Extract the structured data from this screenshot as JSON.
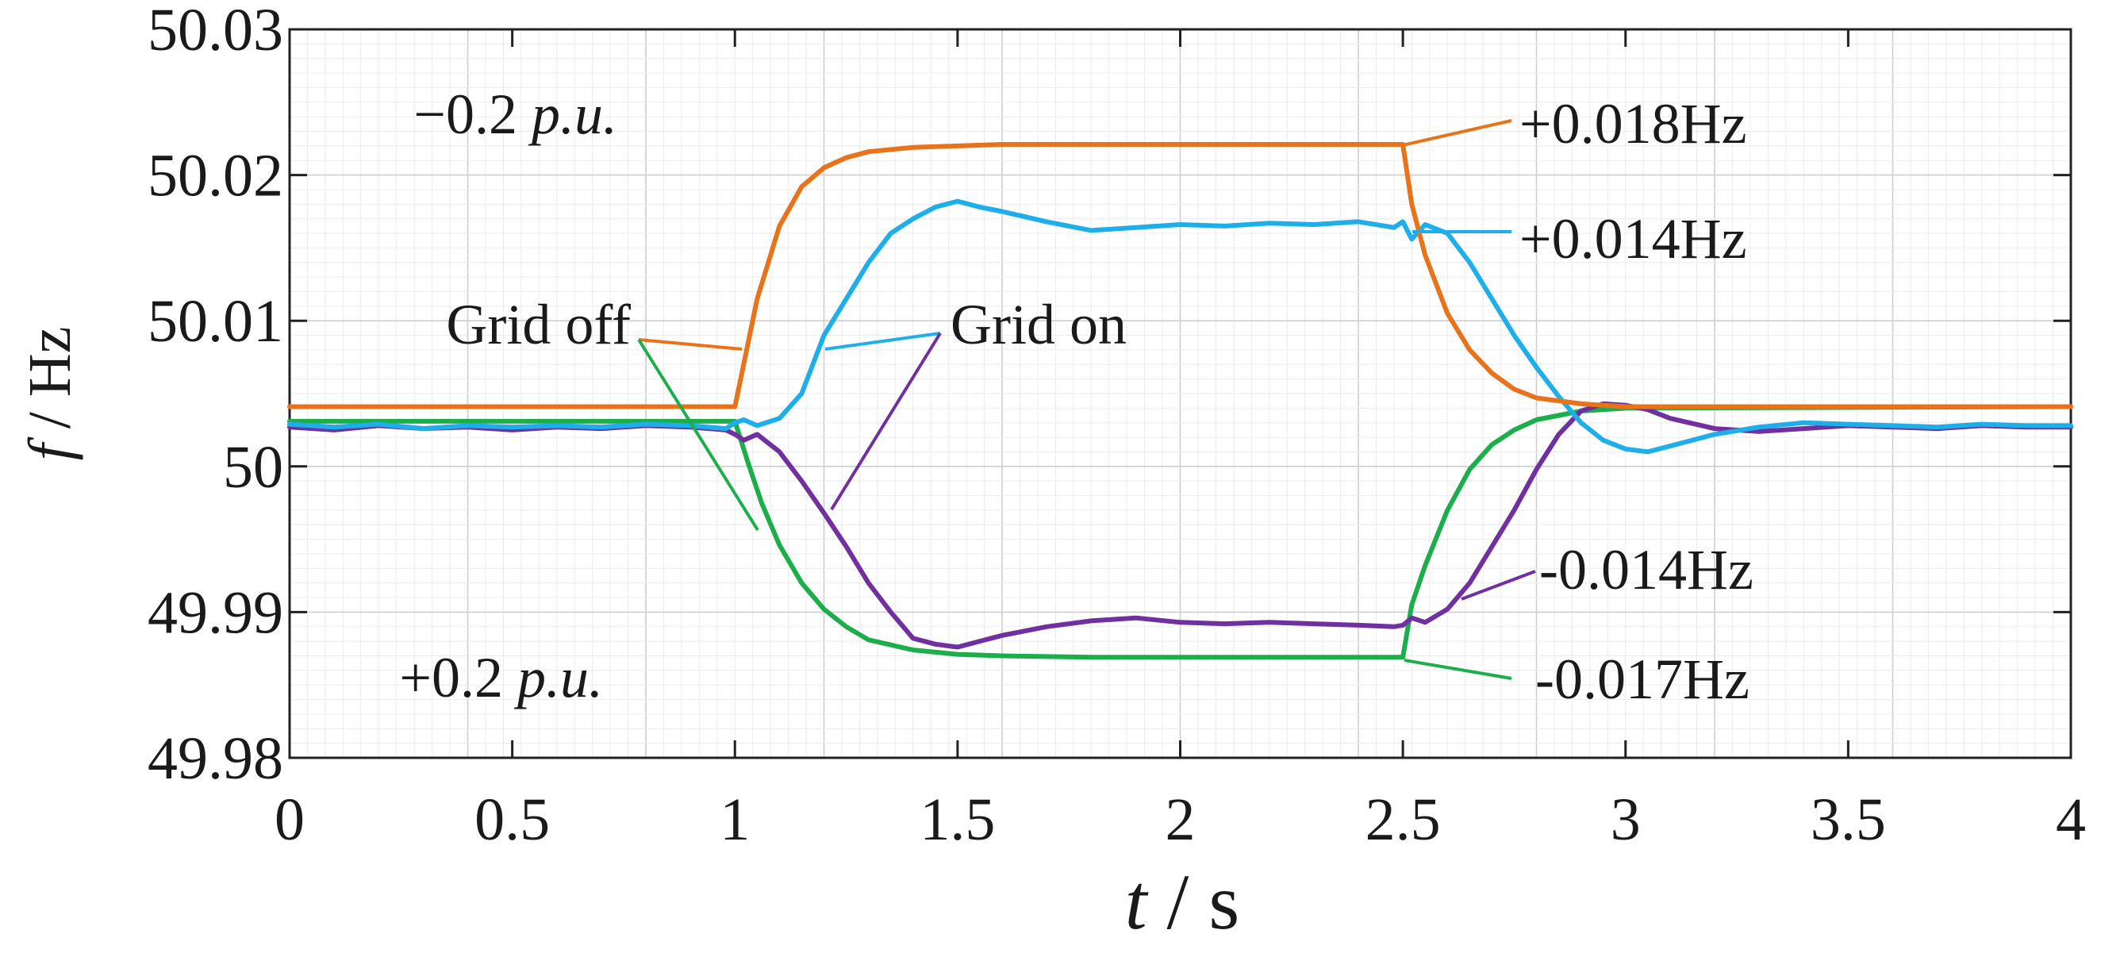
{
  "chart_data": {
    "type": "line",
    "title": "",
    "xlabel": {
      "symbol": "t",
      "unit": " / s"
    },
    "ylabel": {
      "symbol": "f",
      "unit": " / Hz"
    },
    "xlim": [
      0,
      4
    ],
    "ylim": [
      49.98,
      50.03
    ],
    "x_ticks": [
      0,
      0.5,
      1,
      1.5,
      2,
      2.5,
      3,
      3.5,
      4
    ],
    "x_tick_labels": [
      "0",
      "0.5",
      "1",
      "1.5",
      "2",
      "2.5",
      "3",
      "3.5",
      "4"
    ],
    "y_ticks": [
      49.98,
      49.99,
      50,
      50.01,
      50.02,
      50.03
    ],
    "y_tick_labels": [
      "49.98",
      "49.99",
      "50",
      "50.01",
      "50.02",
      "50.03"
    ],
    "grid": true,
    "series": [
      {
        "name": "Grid off (-0.2 p.u.)",
        "color": "#E8731A",
        "x": [
          0,
          1.0,
          1.05,
          1.1,
          1.15,
          1.2,
          1.25,
          1.3,
          1.4,
          1.5,
          1.6,
          1.8,
          2.0,
          2.5,
          2.52,
          2.55,
          2.6,
          2.65,
          2.7,
          2.75,
          2.8,
          2.9,
          3.0,
          4.0
        ],
        "y": [
          50.0041,
          50.0041,
          50.0115,
          50.0165,
          50.0192,
          50.0205,
          50.0212,
          50.0216,
          50.0219,
          50.022,
          50.0221,
          50.0221,
          50.0221,
          50.0221,
          50.018,
          50.0145,
          50.0105,
          50.008,
          50.0064,
          50.0053,
          50.0047,
          50.0043,
          50.0041,
          50.0041
        ]
      },
      {
        "name": "Grid on (+)",
        "color": "#1EAEEA",
        "x": [
          0,
          0.1,
          0.2,
          0.3,
          0.4,
          0.5,
          0.6,
          0.7,
          0.8,
          0.9,
          0.98,
          1.0,
          1.02,
          1.05,
          1.1,
          1.15,
          1.2,
          1.25,
          1.3,
          1.35,
          1.4,
          1.45,
          1.5,
          1.55,
          1.6,
          1.7,
          1.8,
          1.9,
          2.0,
          2.1,
          2.2,
          2.3,
          2.4,
          2.48,
          2.5,
          2.52,
          2.55,
          2.6,
          2.65,
          2.7,
          2.75,
          2.8,
          2.85,
          2.9,
          2.95,
          3.0,
          3.05,
          3.1,
          3.2,
          3.3,
          3.4,
          3.5,
          3.6,
          3.7,
          3.8,
          3.9,
          4.0
        ],
        "y": [
          50.0029,
          50.0027,
          50.0029,
          50.0026,
          50.0028,
          50.0027,
          50.0028,
          50.0027,
          50.0029,
          50.0028,
          50.0026,
          50.003,
          50.0032,
          50.0028,
          50.0033,
          50.005,
          50.009,
          50.0115,
          50.014,
          50.016,
          50.017,
          50.0178,
          50.0182,
          50.0178,
          50.0175,
          50.0168,
          50.0162,
          50.0164,
          50.0166,
          50.0165,
          50.0167,
          50.0166,
          50.0168,
          50.0164,
          50.0168,
          50.0156,
          50.0166,
          50.016,
          50.014,
          50.0115,
          50.009,
          50.0068,
          50.0048,
          50.003,
          50.0018,
          50.0012,
          50.001,
          50.0014,
          50.0022,
          50.0027,
          50.003,
          50.0029,
          50.0028,
          50.0027,
          50.0029,
          50.0028,
          50.0028
        ]
      },
      {
        "name": "Grid on (-)",
        "color": "#7030A0",
        "x": [
          0,
          0.1,
          0.2,
          0.3,
          0.4,
          0.5,
          0.6,
          0.7,
          0.8,
          0.9,
          0.98,
          1.0,
          1.02,
          1.05,
          1.1,
          1.15,
          1.2,
          1.25,
          1.3,
          1.35,
          1.4,
          1.45,
          1.5,
          1.55,
          1.6,
          1.7,
          1.8,
          1.9,
          2.0,
          2.1,
          2.2,
          2.3,
          2.4,
          2.48,
          2.5,
          2.52,
          2.55,
          2.6,
          2.65,
          2.7,
          2.75,
          2.8,
          2.85,
          2.9,
          2.95,
          3.0,
          3.05,
          3.1,
          3.2,
          3.3,
          3.4,
          3.5,
          3.6,
          3.7,
          3.8,
          3.9,
          4.0
        ],
        "y": [
          50.0027,
          50.0025,
          50.0028,
          50.0026,
          50.0027,
          50.0025,
          50.0027,
          50.0026,
          50.0028,
          50.0027,
          50.0025,
          50.0022,
          50.0018,
          50.0022,
          50.001,
          49.999,
          49.9968,
          49.9945,
          49.992,
          49.99,
          49.9882,
          49.9878,
          49.9876,
          49.988,
          49.9884,
          49.989,
          49.9894,
          49.9896,
          49.9893,
          49.9892,
          49.9893,
          49.9892,
          49.9891,
          49.989,
          49.9891,
          49.9896,
          49.9893,
          49.9902,
          49.992,
          49.9945,
          49.997,
          49.9998,
          50.0022,
          50.0038,
          50.0043,
          50.0042,
          50.0039,
          50.0033,
          50.0026,
          50.0024,
          50.0026,
          50.0028,
          50.0027,
          50.0026,
          50.0028,
          50.0027,
          50.0027
        ]
      },
      {
        "name": "Grid off (+0.2 p.u.)",
        "color": "#1BAE4B",
        "x": [
          0,
          0.95,
          1.0,
          1.03,
          1.06,
          1.1,
          1.15,
          1.2,
          1.25,
          1.3,
          1.4,
          1.5,
          1.6,
          1.8,
          2.0,
          2.5,
          2.52,
          2.55,
          2.6,
          2.65,
          2.7,
          2.75,
          2.8,
          2.9,
          3.0,
          4.0
        ],
        "y": [
          50.0031,
          50.0031,
          50.0031,
          50.0002,
          49.9975,
          49.9946,
          49.992,
          49.9902,
          49.989,
          49.9881,
          49.9874,
          49.9871,
          49.987,
          49.9869,
          49.9869,
          49.9869,
          49.9905,
          49.9932,
          49.997,
          49.9998,
          50.0015,
          50.0025,
          50.0032,
          50.0038,
          50.004,
          50.0041
        ]
      }
    ],
    "annotations": [
      {
        "id": "minus-pu",
        "prefix": "−0.2",
        "suffix": "p.u.",
        "color": "#E8731A"
      },
      {
        "id": "plus-pu",
        "prefix": "+0.2",
        "suffix": "p.u.",
        "color": "#1BAE4B"
      },
      {
        "id": "grid-off",
        "text": "Grid off"
      },
      {
        "id": "grid-on",
        "text": "Grid on"
      },
      {
        "id": "plus-018",
        "text": "+0.018Hz"
      },
      {
        "id": "plus-014",
        "text": "+0.014Hz"
      },
      {
        "id": "minus-014",
        "text": "-0.014Hz"
      },
      {
        "id": "minus-017",
        "text": "-0.017Hz"
      }
    ]
  }
}
